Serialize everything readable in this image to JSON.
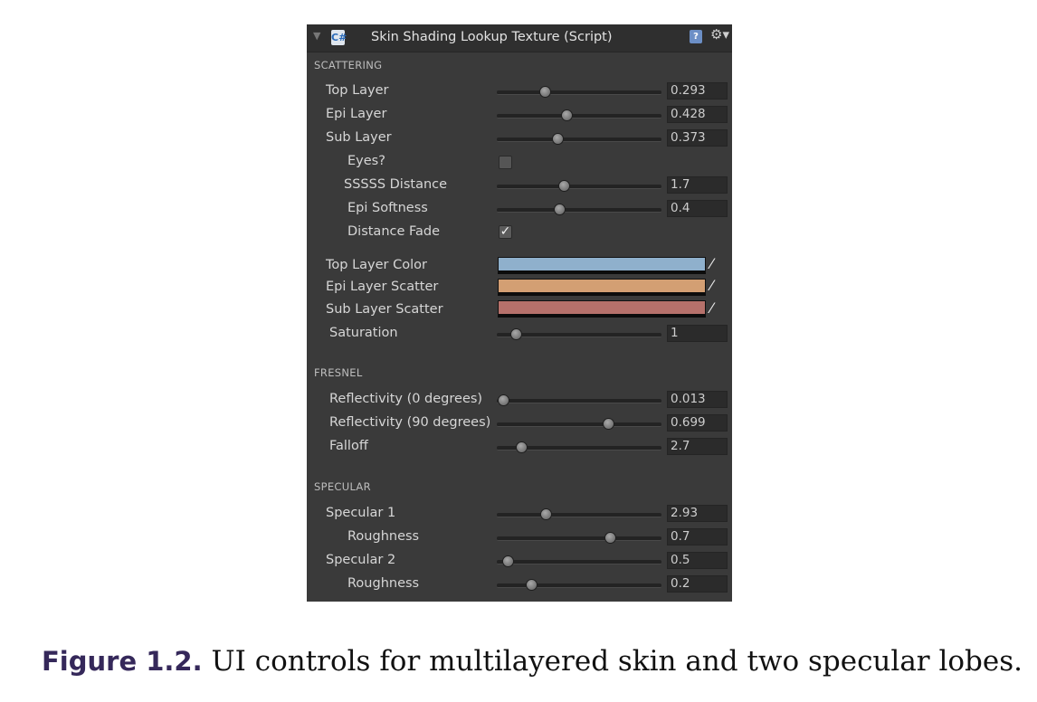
{
  "panel": {
    "title": "Skin Shading Lookup Texture (Script)",
    "icons": {
      "fold": "triangle-down-icon",
      "script": "csharp-script-icon",
      "help": "help-book-icon",
      "settings": "gear-icon"
    }
  },
  "sections": {
    "scattering": "SCATTERING",
    "fresnel": "FRESNEL",
    "specular": "SPECULAR"
  },
  "scattering": {
    "top_layer": {
      "label": "Top Layer",
      "value": "0.293",
      "slider_fraction": 0.293
    },
    "epi_layer": {
      "label": "Epi Layer",
      "value": "0.428",
      "slider_fraction": 0.428
    },
    "sub_layer": {
      "label": "Sub Layer",
      "value": "0.373",
      "slider_fraction": 0.373
    },
    "eyes": {
      "label": "Eyes?",
      "checked": false
    },
    "sssss_distance": {
      "label": "SSSSS Distance",
      "value": "1.7",
      "slider_fraction": 0.41
    },
    "epi_softness": {
      "label": "Epi Softness",
      "value": "0.4",
      "slider_fraction": 0.38
    },
    "distance_fade": {
      "label": "Distance Fade",
      "checked": true,
      "check_glyph": "✓"
    },
    "top_layer_color": {
      "label": "Top Layer Color",
      "color": "#8fb0cc"
    },
    "epi_layer_scatter": {
      "label": "Epi Layer Scatter",
      "color": "#d39f73"
    },
    "sub_layer_scatter": {
      "label": "Sub Layer Scatter",
      "color": "#b6716b"
    },
    "saturation": {
      "label": "Saturation",
      "value": "1",
      "slider_fraction": 0.12
    }
  },
  "fresnel": {
    "reflectivity_0": {
      "label": "Reflectivity (0 degrees)",
      "value": "0.013",
      "slider_fraction": 0.04
    },
    "reflectivity_90": {
      "label": "Reflectivity (90 degrees)",
      "value": "0.699",
      "slider_fraction": 0.68
    },
    "falloff": {
      "label": "Falloff",
      "value": "2.7",
      "slider_fraction": 0.15
    }
  },
  "specular": {
    "specular1": {
      "label": "Specular 1",
      "value": "2.93",
      "slider_fraction": 0.3
    },
    "roughness1": {
      "label": "Roughness",
      "value": "0.7",
      "slider_fraction": 0.69
    },
    "specular2": {
      "label": "Specular 2",
      "value": "0.5",
      "slider_fraction": 0.07
    },
    "roughness2": {
      "label": "Roughness",
      "value": "0.2",
      "slider_fraction": 0.21
    }
  },
  "caption": {
    "label": "Figure 1.2.",
    "text": "UI controls for multilayered skin and two specular lobes."
  }
}
